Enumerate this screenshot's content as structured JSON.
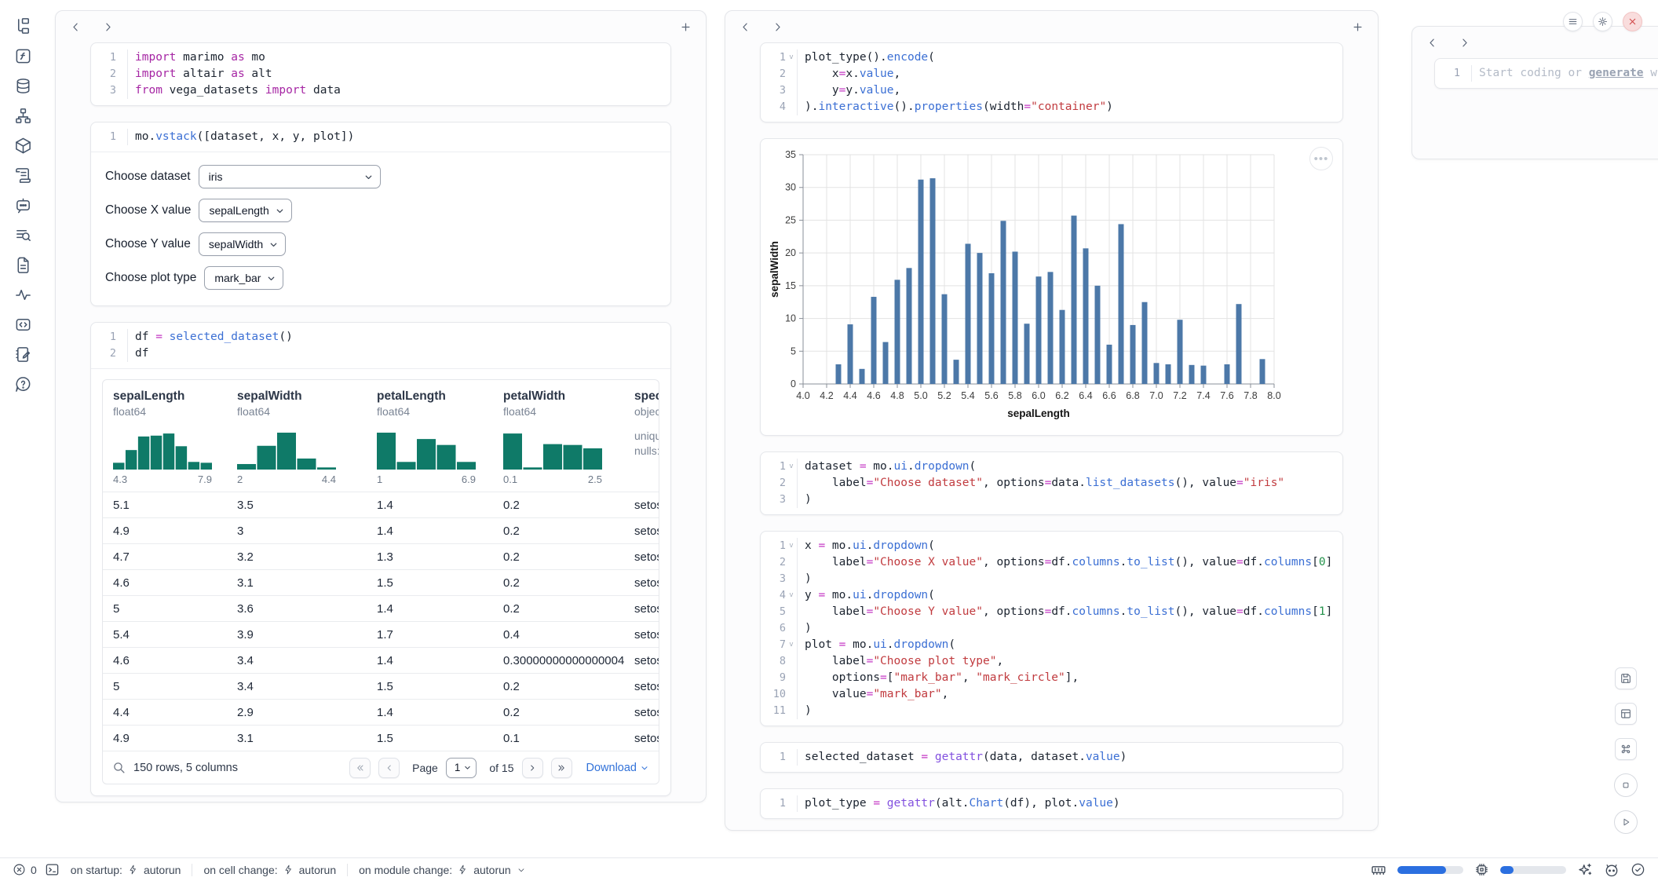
{
  "colors": {
    "hist_bar": "#0f7a68",
    "chart_bar": "#4c78a8",
    "progress": "#2b6fe0",
    "close_red": "#d04343"
  },
  "code": {
    "imports": {
      "lines": [
        {
          "t": [
            [
              "import",
              "kw"
            ],
            [
              " marimo ",
              "pl"
            ],
            [
              "as",
              "kw"
            ],
            [
              " mo",
              "pl"
            ]
          ]
        },
        {
          "t": [
            [
              "import",
              "kw"
            ],
            [
              " altair ",
              "pl"
            ],
            [
              "as",
              "kw"
            ],
            [
              " alt",
              "pl"
            ]
          ]
        },
        {
          "t": [
            [
              "from",
              "kw"
            ],
            [
              " vega_datasets ",
              "pl"
            ],
            [
              "import",
              "kw"
            ],
            [
              " data",
              "pl"
            ]
          ]
        }
      ]
    },
    "vstack": {
      "lines": [
        {
          "t": [
            [
              "mo.",
              "pl"
            ],
            [
              "vstack",
              "fn"
            ],
            [
              "([dataset, x, y, plot])",
              "pl"
            ]
          ]
        }
      ]
    },
    "df": {
      "lines": [
        {
          "t": [
            [
              "df ",
              "pl"
            ],
            [
              "=",
              "op"
            ],
            [
              " ",
              "pl"
            ],
            [
              "selected_dataset",
              "fn"
            ],
            [
              "()",
              "pl"
            ]
          ]
        },
        {
          "t": [
            [
              "df",
              "pl"
            ]
          ]
        }
      ]
    },
    "plot": {
      "lines": [
        {
          "fold": true,
          "t": [
            [
              "plot_type",
              "pl"
            ],
            [
              "().",
              "pl"
            ],
            [
              "encode",
              "fn"
            ],
            [
              "(",
              "pl"
            ]
          ]
        },
        {
          "t": [
            [
              "    x",
              "pl"
            ],
            [
              "=",
              "op"
            ],
            [
              "x.",
              "pl"
            ],
            [
              "value",
              "fn"
            ],
            [
              ",",
              "pl"
            ]
          ]
        },
        {
          "t": [
            [
              "    y",
              "pl"
            ],
            [
              "=",
              "op"
            ],
            [
              "y.",
              "pl"
            ],
            [
              "value",
              "fn"
            ],
            [
              ",",
              "pl"
            ]
          ]
        },
        {
          "t": [
            [
              ").",
              "pl"
            ],
            [
              "interactive",
              "fn"
            ],
            [
              "().",
              "pl"
            ],
            [
              "properties",
              "fn"
            ],
            [
              "(width",
              "pl"
            ],
            [
              "=",
              "op"
            ],
            [
              "\"container\"",
              "str"
            ],
            [
              ")",
              "pl"
            ]
          ]
        }
      ]
    },
    "dataset": {
      "lines": [
        {
          "fold": true,
          "t": [
            [
              "dataset ",
              "pl"
            ],
            [
              "=",
              "op"
            ],
            [
              " mo.",
              "pl"
            ],
            [
              "ui",
              "fn"
            ],
            [
              ".",
              "pl"
            ],
            [
              "dropdown",
              "fn"
            ],
            [
              "(",
              "pl"
            ]
          ]
        },
        {
          "t": [
            [
              "    label",
              "pl"
            ],
            [
              "=",
              "op"
            ],
            [
              "\"Choose dataset\"",
              "str"
            ],
            [
              ", options",
              "pl"
            ],
            [
              "=",
              "op"
            ],
            [
              "data.",
              "pl"
            ],
            [
              "list_datasets",
              "fn"
            ],
            [
              "(), value",
              "pl"
            ],
            [
              "=",
              "op"
            ],
            [
              "\"iris\"",
              "str"
            ]
          ]
        },
        {
          "t": [
            [
              ")",
              "pl"
            ]
          ]
        }
      ]
    },
    "xyplot": {
      "lines": [
        {
          "fold": true,
          "t": [
            [
              "x ",
              "pl"
            ],
            [
              "=",
              "op"
            ],
            [
              " mo.",
              "pl"
            ],
            [
              "ui",
              "fn"
            ],
            [
              ".",
              "pl"
            ],
            [
              "dropdown",
              "fn"
            ],
            [
              "(",
              "pl"
            ]
          ]
        },
        {
          "t": [
            [
              "    label",
              "pl"
            ],
            [
              "=",
              "op"
            ],
            [
              "\"Choose X value\"",
              "str"
            ],
            [
              ", options",
              "pl"
            ],
            [
              "=",
              "op"
            ],
            [
              "df.",
              "pl"
            ],
            [
              "columns",
              "fn"
            ],
            [
              ".",
              "pl"
            ],
            [
              "to_list",
              "fn"
            ],
            [
              "(), value",
              "pl"
            ],
            [
              "=",
              "op"
            ],
            [
              "df.",
              "pl"
            ],
            [
              "columns",
              "fn"
            ],
            [
              "[",
              "pl"
            ],
            [
              "0",
              "num"
            ],
            [
              "]",
              "pl"
            ]
          ]
        },
        {
          "t": [
            [
              ")",
              "pl"
            ]
          ]
        },
        {
          "fold": true,
          "t": [
            [
              "y ",
              "pl"
            ],
            [
              "=",
              "op"
            ],
            [
              " mo.",
              "pl"
            ],
            [
              "ui",
              "fn"
            ],
            [
              ".",
              "pl"
            ],
            [
              "dropdown",
              "fn"
            ],
            [
              "(",
              "pl"
            ]
          ]
        },
        {
          "t": [
            [
              "    label",
              "pl"
            ],
            [
              "=",
              "op"
            ],
            [
              "\"Choose Y value\"",
              "str"
            ],
            [
              ", options",
              "pl"
            ],
            [
              "=",
              "op"
            ],
            [
              "df.",
              "pl"
            ],
            [
              "columns",
              "fn"
            ],
            [
              ".",
              "pl"
            ],
            [
              "to_list",
              "fn"
            ],
            [
              "(), value",
              "pl"
            ],
            [
              "=",
              "op"
            ],
            [
              "df.",
              "pl"
            ],
            [
              "columns",
              "fn"
            ],
            [
              "[",
              "pl"
            ],
            [
              "1",
              "num"
            ],
            [
              "]",
              "pl"
            ]
          ]
        },
        {
          "t": [
            [
              ")",
              "pl"
            ]
          ]
        },
        {
          "fold": true,
          "t": [
            [
              "plot ",
              "pl"
            ],
            [
              "=",
              "op"
            ],
            [
              " mo.",
              "pl"
            ],
            [
              "ui",
              "fn"
            ],
            [
              ".",
              "pl"
            ],
            [
              "dropdown",
              "fn"
            ],
            [
              "(",
              "pl"
            ]
          ]
        },
        {
          "t": [
            [
              "    label",
              "pl"
            ],
            [
              "=",
              "op"
            ],
            [
              "\"Choose plot type\"",
              "str"
            ],
            [
              ",",
              "pl"
            ]
          ]
        },
        {
          "t": [
            [
              "    options",
              "pl"
            ],
            [
              "=",
              "op"
            ],
            [
              "[",
              "pl"
            ],
            [
              "\"mark_bar\"",
              "str"
            ],
            [
              ", ",
              "pl"
            ],
            [
              "\"mark_circle\"",
              "str"
            ],
            [
              "],",
              "pl"
            ]
          ]
        },
        {
          "t": [
            [
              "    value",
              "pl"
            ],
            [
              "=",
              "op"
            ],
            [
              "\"mark_bar\"",
              "str"
            ],
            [
              ",",
              "pl"
            ]
          ]
        },
        {
          "t": [
            [
              ")",
              "pl"
            ]
          ]
        }
      ]
    },
    "selected": {
      "lines": [
        {
          "t": [
            [
              "selected_dataset ",
              "pl"
            ],
            [
              "=",
              "op"
            ],
            [
              " ",
              "pl"
            ],
            [
              "getattr",
              "bi"
            ],
            [
              "(data, dataset.",
              "pl"
            ],
            [
              "value",
              "fn"
            ],
            [
              ")",
              "pl"
            ]
          ]
        }
      ]
    },
    "plottype": {
      "lines": [
        {
          "t": [
            [
              "plot_type ",
              "pl"
            ],
            [
              "=",
              "op"
            ],
            [
              " ",
              "pl"
            ],
            [
              "getattr",
              "bi"
            ],
            [
              "(alt.",
              "pl"
            ],
            [
              "Chart",
              "fn"
            ],
            [
              "(df), plot.",
              "pl"
            ],
            [
              "value",
              "fn"
            ],
            [
              ")",
              "pl"
            ]
          ]
        }
      ]
    }
  },
  "left_panel": {
    "controls": [
      {
        "label": "Choose dataset",
        "value": "iris"
      },
      {
        "label": "Choose X value",
        "value": "sepalLength"
      },
      {
        "label": "Choose Y value",
        "value": "sepalWidth"
      },
      {
        "label": "Choose plot type",
        "value": "mark_bar"
      }
    ],
    "table": {
      "columns": [
        {
          "name": "sepalLength",
          "type": "float64",
          "min": "4.3",
          "max": "7.9",
          "hist": [
            0.16,
            0.46,
            0.78,
            0.8,
            0.85,
            0.55,
            0.18,
            0.16
          ]
        },
        {
          "name": "sepalWidth",
          "type": "float64",
          "min": "2",
          "max": "4.4",
          "hist": [
            0.13,
            0.56,
            0.87,
            0.26,
            0.05
          ]
        },
        {
          "name": "petalLength",
          "type": "float64",
          "min": "1",
          "max": "6.9",
          "hist": [
            0.87,
            0.18,
            0.72,
            0.58,
            0.18
          ]
        },
        {
          "name": "petalWidth",
          "type": "float64",
          "min": "0.1",
          "max": "2.5",
          "hist": [
            0.85,
            0.05,
            0.6,
            0.58,
            0.5
          ]
        },
        {
          "name": "speci",
          "type": "objec",
          "meta": [
            "uniqu",
            "nulls:"
          ]
        }
      ],
      "rows": [
        [
          "5.1",
          "3.5",
          "1.4",
          "0.2",
          "setos"
        ],
        [
          "4.9",
          "3",
          "1.4",
          "0.2",
          "setos"
        ],
        [
          "4.7",
          "3.2",
          "1.3",
          "0.2",
          "setos"
        ],
        [
          "4.6",
          "3.1",
          "1.5",
          "0.2",
          "setos"
        ],
        [
          "5",
          "3.6",
          "1.4",
          "0.2",
          "setos"
        ],
        [
          "5.4",
          "3.9",
          "1.7",
          "0.4",
          "setos"
        ],
        [
          "4.6",
          "3.4",
          "1.4",
          "0.30000000000000004",
          "setos"
        ],
        [
          "5",
          "3.4",
          "1.5",
          "0.2",
          "setos"
        ],
        [
          "4.4",
          "2.9",
          "1.4",
          "0.2",
          "setos"
        ],
        [
          "4.9",
          "3.1",
          "1.5",
          "0.1",
          "setos"
        ]
      ],
      "footer": {
        "summary": "150 rows, 5 columns",
        "page_word": "Page",
        "page_value": "1",
        "of_label": "of 15",
        "download_label": "Download"
      }
    }
  },
  "chart_data": {
    "type": "bar",
    "xlabel": "sepalLength",
    "ylabel": "sepalWidth",
    "xlim": [
      4.0,
      8.0
    ],
    "x_tick_step": 0.2,
    "ylim": [
      0,
      35
    ],
    "y_ticks": [
      0,
      5,
      10,
      15,
      20,
      25,
      30,
      35
    ],
    "grid": true,
    "legend": false,
    "bar_color": "#4c78a8",
    "x": [
      4.3,
      4.4,
      4.5,
      4.6,
      4.7,
      4.8,
      4.9,
      5.0,
      5.1,
      5.2,
      5.3,
      5.4,
      5.5,
      5.6,
      5.7,
      5.8,
      5.9,
      6.0,
      6.1,
      6.2,
      6.3,
      6.4,
      6.5,
      6.6,
      6.7,
      6.8,
      6.9,
      7.0,
      7.1,
      7.2,
      7.3,
      7.4,
      7.6,
      7.7,
      7.9
    ],
    "y": [
      3.0,
      9.1,
      2.3,
      13.3,
      6.4,
      15.9,
      17.7,
      31.2,
      31.4,
      13.7,
      3.7,
      21.4,
      20.0,
      16.9,
      24.9,
      20.2,
      9.2,
      16.4,
      17.1,
      11.3,
      25.7,
      20.7,
      15.0,
      6.0,
      24.4,
      9.0,
      12.5,
      3.2,
      3.0,
      9.8,
      2.9,
      2.8,
      3.0,
      12.2,
      3.8
    ]
  },
  "right_panel": {
    "ai_cell": {
      "line": "1",
      "prefix": "Start coding or ",
      "link": "generate",
      "suffix": " with "
    }
  },
  "status_bar": {
    "error_count": "0",
    "segments": [
      {
        "label": "on startup:",
        "value": "autorun"
      },
      {
        "label": "on cell change:",
        "value": "autorun"
      },
      {
        "label": "on module change:",
        "value": "autorun"
      }
    ],
    "ram_fill": 0.74,
    "cpu_fill": 0.2
  }
}
